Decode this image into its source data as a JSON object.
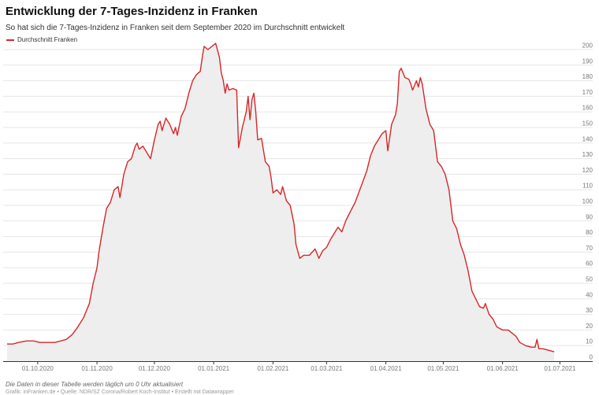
{
  "chart_data": {
    "type": "line",
    "title": "Entwicklung der 7-Tages-Inzidenz in Franken",
    "subtitle": "So hat sich die 7-Tages-Inzidenz in Franken seit dem September 2020 im Durchschnitt entwickelt",
    "xlabel": "",
    "ylabel": "",
    "legend_position": "top-left",
    "grid": true,
    "ylim": [
      0,
      200
    ],
    "y_ticks": [
      0,
      10,
      20,
      30,
      40,
      50,
      60,
      70,
      80,
      90,
      100,
      110,
      120,
      130,
      140,
      150,
      160,
      170,
      180,
      190,
      200
    ],
    "x_range": [
      "2020-09-15",
      "2021-07-07"
    ],
    "x_ticks": [
      {
        "date": "2020-10-01",
        "label": "01.10.2020"
      },
      {
        "date": "2020-11-01",
        "label": "01.11.2020"
      },
      {
        "date": "2020-12-01",
        "label": "01.12.2020"
      },
      {
        "date": "2021-01-01",
        "label": "01.01.2021"
      },
      {
        "date": "2021-02-01",
        "label": "01.02.2021"
      },
      {
        "date": "2021-03-01",
        "label": "01.03.2021"
      },
      {
        "date": "2021-04-01",
        "label": "01.04.2021"
      },
      {
        "date": "2021-05-01",
        "label": "01.05.2021"
      },
      {
        "date": "2021-06-01",
        "label": "01.06.2021"
      },
      {
        "date": "2021-07-01",
        "label": "01.07.2021"
      }
    ],
    "series": [
      {
        "name": "Durchschnitt Franken",
        "color": "#d62728",
        "fill": "#eeeeee",
        "points": [
          [
            "2020-09-15",
            11
          ],
          [
            "2020-09-18",
            11
          ],
          [
            "2020-09-21",
            12
          ],
          [
            "2020-09-25",
            13
          ],
          [
            "2020-09-29",
            13
          ],
          [
            "2020-10-02",
            12
          ],
          [
            "2020-10-06",
            12
          ],
          [
            "2020-10-10",
            12
          ],
          [
            "2020-10-13",
            13
          ],
          [
            "2020-10-16",
            14
          ],
          [
            "2020-10-19",
            17
          ],
          [
            "2020-10-22",
            22
          ],
          [
            "2020-10-25",
            28
          ],
          [
            "2020-10-28",
            37
          ],
          [
            "2020-10-30",
            50
          ],
          [
            "2020-11-01",
            60
          ],
          [
            "2020-11-02",
            70
          ],
          [
            "2020-11-04",
            85
          ],
          [
            "2020-11-06",
            98
          ],
          [
            "2020-11-08",
            102
          ],
          [
            "2020-11-10",
            110
          ],
          [
            "2020-11-12",
            112
          ],
          [
            "2020-11-13",
            105
          ],
          [
            "2020-11-15",
            120
          ],
          [
            "2020-11-17",
            128
          ],
          [
            "2020-11-19",
            130
          ],
          [
            "2020-11-21",
            138
          ],
          [
            "2020-11-22",
            140
          ],
          [
            "2020-11-23",
            136
          ],
          [
            "2020-11-25",
            138
          ],
          [
            "2020-11-27",
            134
          ],
          [
            "2020-11-29",
            130
          ],
          [
            "2020-12-01",
            142
          ],
          [
            "2020-12-03",
            152
          ],
          [
            "2020-12-04",
            154
          ],
          [
            "2020-12-05",
            148
          ],
          [
            "2020-12-07",
            156
          ],
          [
            "2020-12-09",
            152
          ],
          [
            "2020-12-11",
            146
          ],
          [
            "2020-12-12",
            150
          ],
          [
            "2020-12-13",
            145
          ],
          [
            "2020-12-15",
            157
          ],
          [
            "2020-12-17",
            162
          ],
          [
            "2020-12-19",
            172
          ],
          [
            "2020-12-21",
            180
          ],
          [
            "2020-12-23",
            184
          ],
          [
            "2020-12-25",
            186
          ],
          [
            "2020-12-26",
            195
          ],
          [
            "2020-12-27",
            202
          ],
          [
            "2020-12-29",
            200
          ],
          [
            "2020-12-31",
            202
          ],
          [
            "2021-01-02",
            204
          ],
          [
            "2021-01-04",
            195
          ],
          [
            "2021-01-05",
            185
          ],
          [
            "2021-01-06",
            180
          ],
          [
            "2021-01-07",
            172
          ],
          [
            "2021-01-08",
            178
          ],
          [
            "2021-01-09",
            174
          ],
          [
            "2021-01-11",
            175
          ],
          [
            "2021-01-13",
            174
          ],
          [
            "2021-01-14",
            137
          ],
          [
            "2021-01-16",
            150
          ],
          [
            "2021-01-18",
            160
          ],
          [
            "2021-01-19",
            170
          ],
          [
            "2021-01-20",
            155
          ],
          [
            "2021-01-21",
            168
          ],
          [
            "2021-01-22",
            172
          ],
          [
            "2021-01-23",
            160
          ],
          [
            "2021-01-24",
            142
          ],
          [
            "2021-01-26",
            143
          ],
          [
            "2021-01-28",
            128
          ],
          [
            "2021-01-30",
            125
          ],
          [
            "2021-01-31",
            118
          ],
          [
            "2021-02-01",
            108
          ],
          [
            "2021-02-03",
            110
          ],
          [
            "2021-02-05",
            107
          ],
          [
            "2021-02-06",
            112
          ],
          [
            "2021-02-08",
            103
          ],
          [
            "2021-02-10",
            100
          ],
          [
            "2021-02-12",
            88
          ],
          [
            "2021-02-13",
            75
          ],
          [
            "2021-02-15",
            66
          ],
          [
            "2021-02-17",
            68
          ],
          [
            "2021-02-20",
            68
          ],
          [
            "2021-02-23",
            72
          ],
          [
            "2021-02-25",
            66
          ],
          [
            "2021-02-27",
            71
          ],
          [
            "2021-03-01",
            73
          ],
          [
            "2021-03-03",
            78
          ],
          [
            "2021-03-05",
            82
          ],
          [
            "2021-03-07",
            86
          ],
          [
            "2021-03-09",
            83
          ],
          [
            "2021-03-11",
            90
          ],
          [
            "2021-03-13",
            95
          ],
          [
            "2021-03-16",
            102
          ],
          [
            "2021-03-19",
            112
          ],
          [
            "2021-03-22",
            122
          ],
          [
            "2021-03-24",
            132
          ],
          [
            "2021-03-26",
            138
          ],
          [
            "2021-03-28",
            142
          ],
          [
            "2021-03-30",
            146
          ],
          [
            "2021-04-01",
            148
          ],
          [
            "2021-04-02",
            135
          ],
          [
            "2021-04-04",
            152
          ],
          [
            "2021-04-06",
            158
          ],
          [
            "2021-04-07",
            165
          ],
          [
            "2021-04-08",
            186
          ],
          [
            "2021-04-09",
            188
          ],
          [
            "2021-04-11",
            182
          ],
          [
            "2021-04-13",
            181
          ],
          [
            "2021-04-14",
            178
          ],
          [
            "2021-04-15",
            174
          ],
          [
            "2021-04-17",
            180
          ],
          [
            "2021-04-18",
            176
          ],
          [
            "2021-04-19",
            182
          ],
          [
            "2021-04-20",
            178
          ],
          [
            "2021-04-22",
            162
          ],
          [
            "2021-04-24",
            152
          ],
          [
            "2021-04-26",
            148
          ],
          [
            "2021-04-28",
            128
          ],
          [
            "2021-04-30",
            125
          ],
          [
            "2021-05-02",
            120
          ],
          [
            "2021-05-04",
            110
          ],
          [
            "2021-05-06",
            90
          ],
          [
            "2021-05-08",
            85
          ],
          [
            "2021-05-10",
            75
          ],
          [
            "2021-05-12",
            68
          ],
          [
            "2021-05-14",
            58
          ],
          [
            "2021-05-16",
            45
          ],
          [
            "2021-05-18",
            40
          ],
          [
            "2021-05-20",
            35
          ],
          [
            "2021-05-22",
            34
          ],
          [
            "2021-05-23",
            37
          ],
          [
            "2021-05-25",
            30
          ],
          [
            "2021-05-27",
            27
          ],
          [
            "2021-05-29",
            22
          ],
          [
            "2021-06-01",
            20
          ],
          [
            "2021-06-04",
            20
          ],
          [
            "2021-06-06",
            18
          ],
          [
            "2021-06-08",
            16
          ],
          [
            "2021-06-10",
            12
          ],
          [
            "2021-06-13",
            10
          ],
          [
            "2021-06-16",
            9
          ],
          [
            "2021-06-18",
            9
          ],
          [
            "2021-06-19",
            14
          ],
          [
            "2021-06-20",
            8
          ],
          [
            "2021-06-22",
            8
          ],
          [
            "2021-06-25",
            7
          ],
          [
            "2021-06-28",
            6
          ]
        ]
      }
    ]
  },
  "footer": {
    "note": "Die Daten in dieser Tabelle werden täglich um 0 Uhr aktualisiert",
    "source": "Grafik: inFranken.de • Quelle: NDR/SZ Corona/Robert Koch-Institut • Erstellt mit Datawrapper"
  }
}
